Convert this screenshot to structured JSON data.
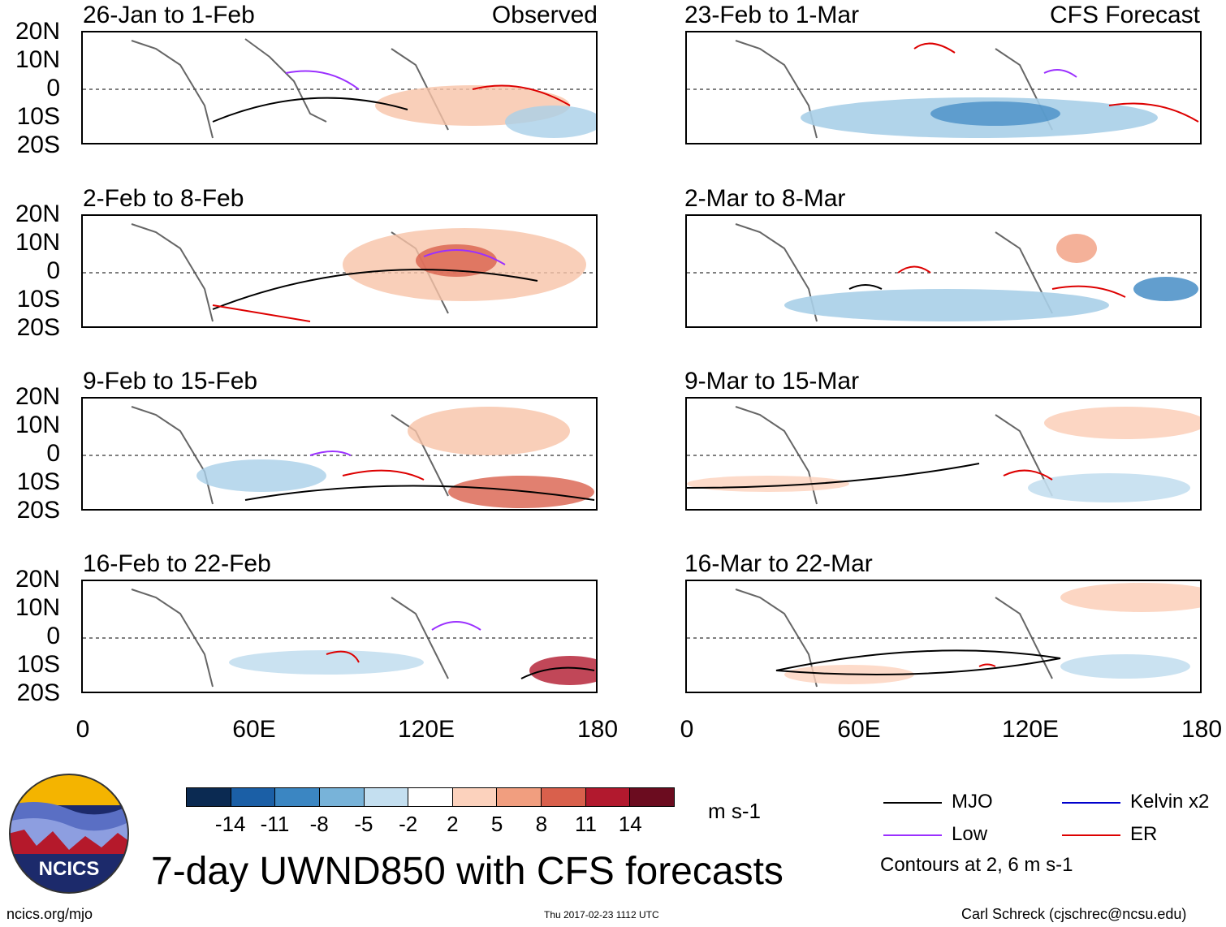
{
  "observed_tag": "Observed",
  "forecast_tag": "CFS Forecast",
  "panels_observed": [
    {
      "title": "26-Jan to 1-Feb"
    },
    {
      "title": "2-Feb to 8-Feb"
    },
    {
      "title": "9-Feb to 15-Feb"
    },
    {
      "title": "16-Feb to 22-Feb"
    }
  ],
  "panels_forecast": [
    {
      "title": "23-Feb to 1-Mar"
    },
    {
      "title": "2-Mar to 8-Mar"
    },
    {
      "title": "9-Mar to 15-Mar"
    },
    {
      "title": "16-Mar to 22-Mar"
    }
  ],
  "lat_labels": [
    "20N",
    "10N",
    "0",
    "10S",
    "20S"
  ],
  "lon_labels": [
    "0",
    "60E",
    "120E",
    "180"
  ],
  "colorbar": {
    "colors": [
      "#0b2a52",
      "#1b5fa6",
      "#3b86c2",
      "#78b3d9",
      "#c4dff0",
      "#ffffff",
      "#fcd2bd",
      "#f19e7f",
      "#d9604c",
      "#b2192e",
      "#6b0c1f"
    ],
    "labels": [
      "-14",
      "-11",
      "-8",
      "-5",
      "-2",
      "2",
      "5",
      "8",
      "11",
      "14"
    ],
    "units": "m s-1"
  },
  "legend": {
    "items": [
      {
        "name": "MJO",
        "color": "#000000"
      },
      {
        "name": "Kelvin x2",
        "color": "#0000cc"
      },
      {
        "name": "Low",
        "color": "#9b30ff"
      },
      {
        "name": "ER",
        "color": "#dd0000"
      }
    ],
    "note": "Contours at 2, 6 m s-1"
  },
  "logo_text": "NCICS",
  "main_title": "7-day UWND850 with CFS forecasts",
  "footer": {
    "url": "ncics.org/mjo",
    "timestamp": "Thu 2017-02-23 1112 UTC",
    "author": "Carl Schreck (cjschrec@ncsu.edu)"
  }
}
